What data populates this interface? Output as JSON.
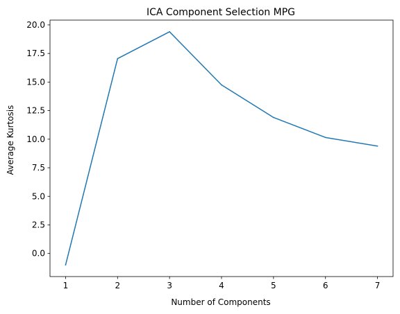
{
  "chart_data": {
    "type": "line",
    "title": "ICA Component Selection MPG",
    "xlabel": "Number of Components",
    "ylabel": "Average Kurtosis",
    "x": [
      1,
      2,
      3,
      4,
      5,
      6,
      7
    ],
    "series": [
      {
        "values": [
          -1.0,
          17.05,
          19.4,
          14.75,
          11.9,
          10.15,
          9.4
        ],
        "color": "#1f77b4"
      }
    ],
    "xticks": [
      1,
      2,
      3,
      4,
      5,
      6,
      7
    ],
    "xtick_labels": [
      "1",
      "2",
      "3",
      "4",
      "5",
      "6",
      "7"
    ],
    "yticks": [
      0,
      2.5,
      5,
      7.5,
      10,
      12.5,
      15,
      17.5,
      20
    ],
    "ytick_labels": [
      "0.0",
      "2.5",
      "5.0",
      "7.5",
      "10.0",
      "12.5",
      "15.0",
      "17.5",
      "20.0"
    ],
    "xlim": [
      0.7,
      7.3
    ],
    "ylim": [
      -2.02,
      20.42
    ],
    "grid": false,
    "legend": "none"
  }
}
